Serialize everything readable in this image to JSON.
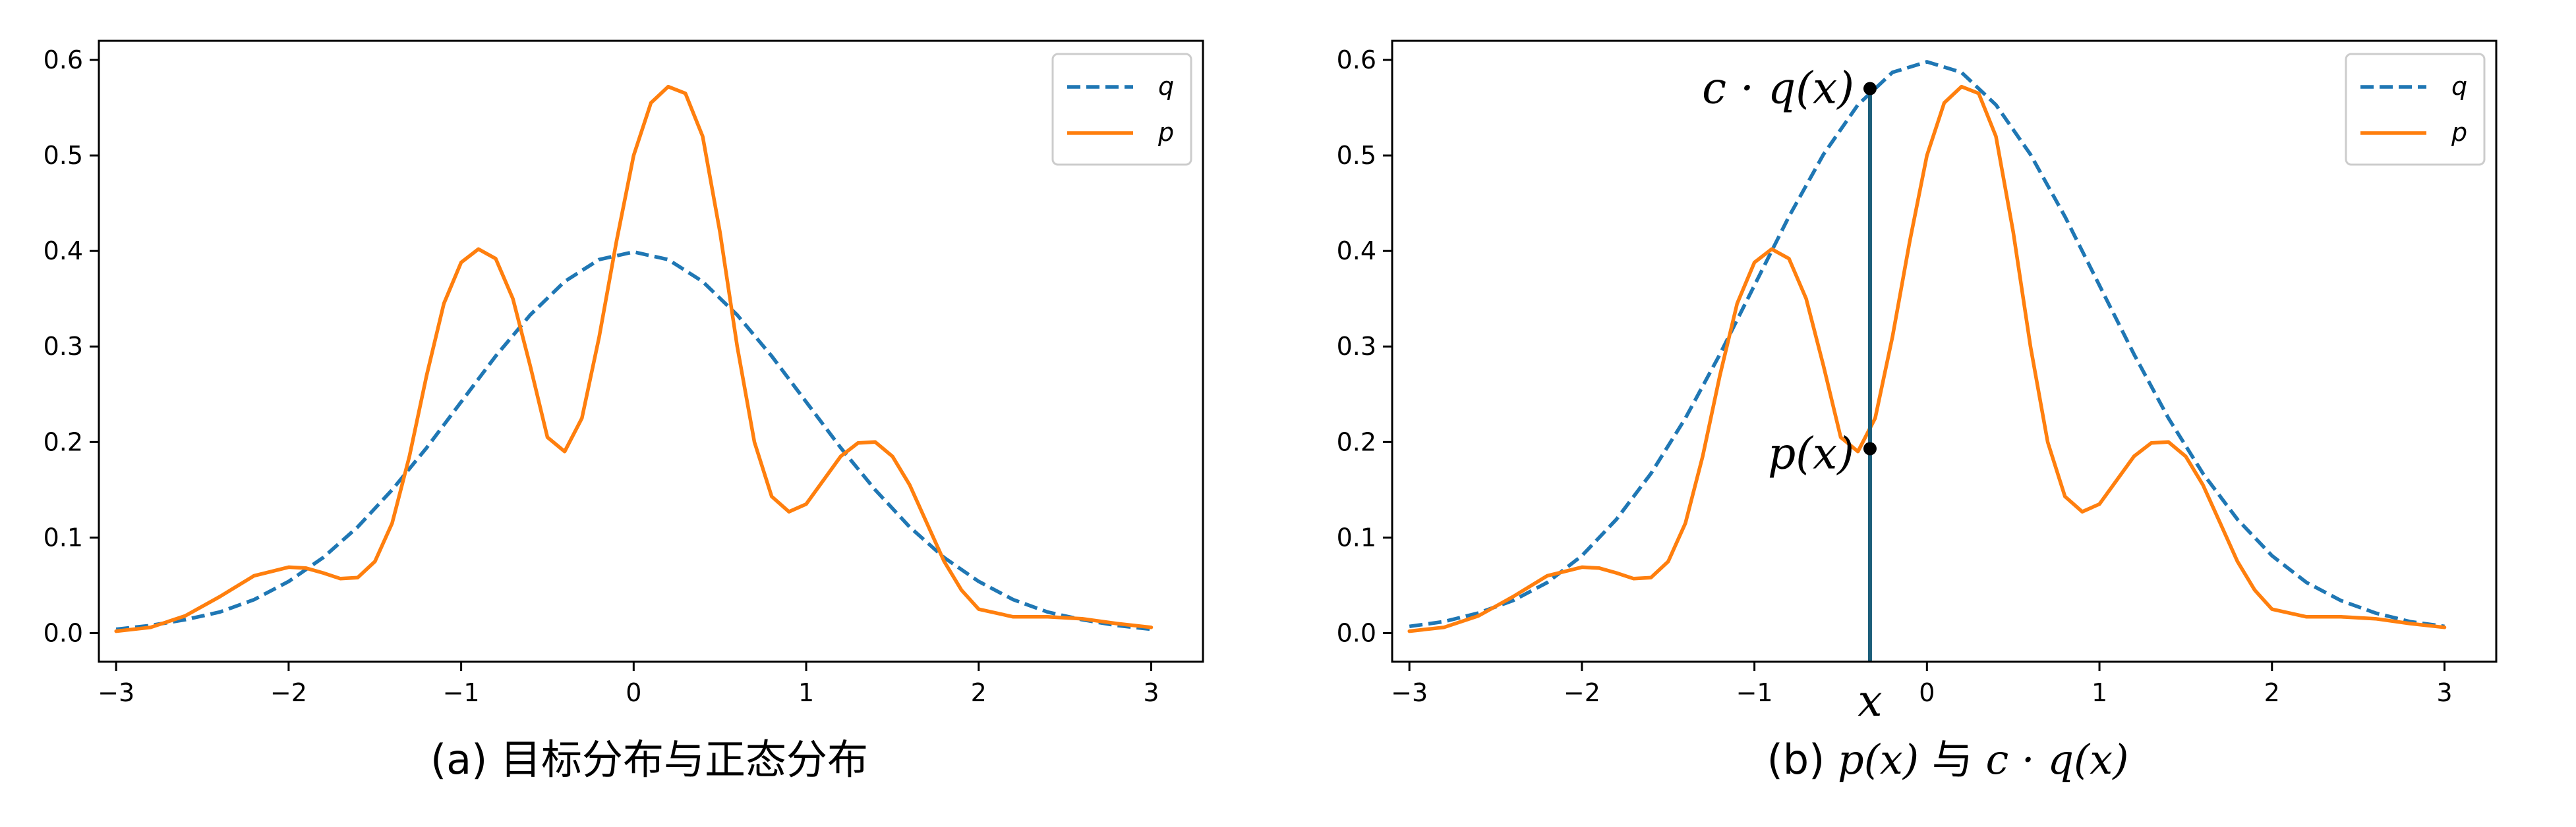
{
  "chart_data": [
    {
      "type": "line",
      "caption": "(a) 目标分布与正态分布",
      "xlim": [
        -3.1,
        3.3
      ],
      "ylim": [
        -0.03,
        0.62
      ],
      "xticks": [
        -3,
        -2,
        -1,
        0,
        1,
        2,
        3
      ],
      "xtick_labels": [
        "−3",
        "−2",
        "−1",
        "0",
        "1",
        "2",
        "3"
      ],
      "yticks": [
        0.0,
        0.1,
        0.2,
        0.3,
        0.4,
        0.5,
        0.6
      ],
      "ytick_labels": [
        "0.0",
        "0.1",
        "0.2",
        "0.3",
        "0.4",
        "0.5",
        "0.6"
      ],
      "legend_position": "top-right",
      "grid": false,
      "series": [
        {
          "name": "q",
          "style": "dashed",
          "color": "#1f77b4",
          "x": [
            -3.0,
            -2.8,
            -2.6,
            -2.4,
            -2.2,
            -2.0,
            -1.8,
            -1.6,
            -1.4,
            -1.2,
            -1.0,
            -0.8,
            -0.6,
            -0.4,
            -0.2,
            0.0,
            0.2,
            0.4,
            0.6,
            0.8,
            1.0,
            1.2,
            1.4,
            1.6,
            1.8,
            2.0,
            2.2,
            2.4,
            2.6,
            2.8,
            3.0
          ],
          "y": [
            0.004,
            0.008,
            0.014,
            0.022,
            0.035,
            0.054,
            0.079,
            0.111,
            0.15,
            0.194,
            0.242,
            0.29,
            0.333,
            0.368,
            0.391,
            0.399,
            0.391,
            0.368,
            0.333,
            0.29,
            0.242,
            0.194,
            0.15,
            0.111,
            0.079,
            0.054,
            0.035,
            0.022,
            0.014,
            0.008,
            0.004
          ]
        },
        {
          "name": "p",
          "style": "solid",
          "color": "#ff7f0e",
          "x": [
            -3.0,
            -2.8,
            -2.6,
            -2.4,
            -2.2,
            -2.0,
            -1.9,
            -1.8,
            -1.7,
            -1.6,
            -1.5,
            -1.4,
            -1.3,
            -1.2,
            -1.1,
            -1.0,
            -0.9,
            -0.8,
            -0.7,
            -0.6,
            -0.5,
            -0.4,
            -0.3,
            -0.2,
            -0.1,
            0.0,
            0.1,
            0.2,
            0.3,
            0.4,
            0.5,
            0.6,
            0.7,
            0.8,
            0.9,
            1.0,
            1.1,
            1.2,
            1.3,
            1.4,
            1.5,
            1.6,
            1.7,
            1.8,
            1.9,
            2.0,
            2.2,
            2.4,
            2.6,
            2.8,
            3.0
          ],
          "y": [
            0.002,
            0.006,
            0.018,
            0.038,
            0.06,
            0.069,
            0.068,
            0.063,
            0.057,
            0.058,
            0.075,
            0.115,
            0.185,
            0.27,
            0.345,
            0.388,
            0.402,
            0.392,
            0.35,
            0.28,
            0.205,
            0.19,
            0.225,
            0.31,
            0.41,
            0.5,
            0.555,
            0.572,
            0.565,
            0.52,
            0.42,
            0.3,
            0.2,
            0.143,
            0.127,
            0.135,
            0.16,
            0.185,
            0.199,
            0.2,
            0.185,
            0.155,
            0.115,
            0.075,
            0.045,
            0.025,
            0.017,
            0.017,
            0.015,
            0.01,
            0.006
          ]
        }
      ]
    },
    {
      "type": "line",
      "caption_prefix": "(b) ",
      "caption_p": "p(x)",
      "caption_mid": " 与 ",
      "caption_cq": "c · q(x)",
      "xlim": [
        -3.1,
        3.3
      ],
      "ylim": [
        -0.03,
        0.62
      ],
      "xticks": [
        -3,
        -2,
        -1,
        0,
        1,
        2,
        3
      ],
      "xtick_labels": [
        "−3",
        "−2",
        "−1",
        "0",
        "1",
        "2",
        "3"
      ],
      "yticks": [
        0.0,
        0.1,
        0.2,
        0.3,
        0.4,
        0.5,
        0.6
      ],
      "ytick_labels": [
        "0.0",
        "0.1",
        "0.2",
        "0.3",
        "0.4",
        "0.5",
        "0.6"
      ],
      "legend_position": "top-right",
      "grid": false,
      "series": [
        {
          "name": "q",
          "style": "dashed",
          "color": "#1f77b4",
          "x": [
            -3.0,
            -2.8,
            -2.6,
            -2.4,
            -2.2,
            -2.0,
            -1.8,
            -1.6,
            -1.4,
            -1.2,
            -1.0,
            -0.8,
            -0.6,
            -0.4,
            -0.2,
            0.0,
            0.2,
            0.4,
            0.6,
            0.8,
            1.0,
            1.2,
            1.4,
            1.6,
            1.8,
            2.0,
            2.2,
            2.4,
            2.6,
            2.8,
            3.0
          ],
          "y": [
            0.007,
            0.012,
            0.021,
            0.034,
            0.053,
            0.081,
            0.119,
            0.167,
            0.225,
            0.292,
            0.364,
            0.436,
            0.501,
            0.553,
            0.587,
            0.598,
            0.587,
            0.553,
            0.501,
            0.436,
            0.364,
            0.292,
            0.225,
            0.167,
            0.119,
            0.081,
            0.053,
            0.034,
            0.021,
            0.012,
            0.007
          ]
        },
        {
          "name": "p",
          "style": "solid",
          "color": "#ff7f0e",
          "x": [
            -3.0,
            -2.8,
            -2.6,
            -2.4,
            -2.2,
            -2.0,
            -1.9,
            -1.8,
            -1.7,
            -1.6,
            -1.5,
            -1.4,
            -1.3,
            -1.2,
            -1.1,
            -1.0,
            -0.9,
            -0.8,
            -0.7,
            -0.6,
            -0.5,
            -0.4,
            -0.3,
            -0.2,
            -0.1,
            0.0,
            0.1,
            0.2,
            0.3,
            0.4,
            0.5,
            0.6,
            0.7,
            0.8,
            0.9,
            1.0,
            1.1,
            1.2,
            1.3,
            1.4,
            1.5,
            1.6,
            1.7,
            1.8,
            1.9,
            2.0,
            2.2,
            2.4,
            2.6,
            2.8,
            3.0
          ],
          "y": [
            0.002,
            0.006,
            0.018,
            0.038,
            0.06,
            0.069,
            0.068,
            0.063,
            0.057,
            0.058,
            0.075,
            0.115,
            0.185,
            0.27,
            0.345,
            0.388,
            0.402,
            0.392,
            0.35,
            0.28,
            0.205,
            0.19,
            0.225,
            0.31,
            0.41,
            0.5,
            0.555,
            0.572,
            0.565,
            0.52,
            0.42,
            0.3,
            0.2,
            0.143,
            0.127,
            0.135,
            0.16,
            0.185,
            0.199,
            0.2,
            0.185,
            0.155,
            0.115,
            0.075,
            0.045,
            0.025,
            0.017,
            0.017,
            0.015,
            0.01,
            0.006
          ]
        }
      ],
      "marker_x": -0.33,
      "marker_x_label": "x",
      "point_p": {
        "x": -0.33,
        "y": 0.193,
        "label": "p(x)"
      },
      "point_cq": {
        "x": -0.33,
        "y": 0.57,
        "label": "c · q(x)"
      },
      "marker_color": "#1b5e7a"
    }
  ]
}
